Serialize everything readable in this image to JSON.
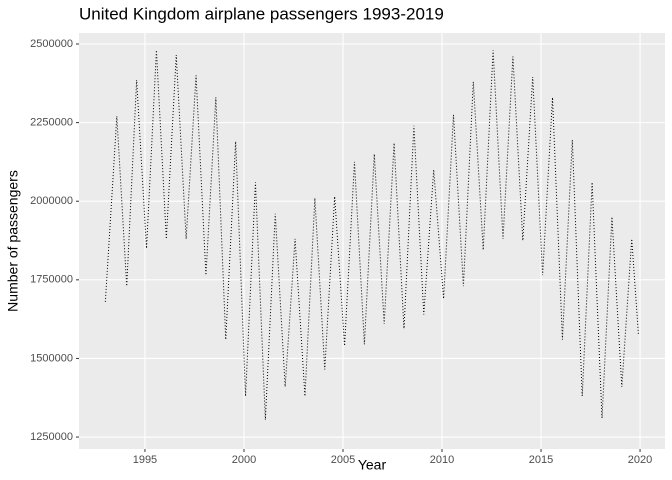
{
  "chart_data": {
    "type": "line",
    "title": "United Kingdom airplane passengers 1993-2019",
    "x_label": "Year",
    "y_label": "Number of passengers",
    "x": [
      1993.0,
      1993.58,
      1994.08,
      1994.58,
      1995.08,
      1995.58,
      1996.08,
      1996.58,
      1997.08,
      1997.58,
      1998.08,
      1998.58,
      1999.08,
      1999.58,
      2000.08,
      2000.58,
      2001.08,
      2001.58,
      2002.08,
      2002.58,
      2003.08,
      2003.58,
      2004.08,
      2004.58,
      2005.08,
      2005.58,
      2006.08,
      2006.58,
      2007.08,
      2007.58,
      2008.08,
      2008.58,
      2009.08,
      2009.58,
      2010.08,
      2010.58,
      2011.08,
      2011.58,
      2012.08,
      2012.58,
      2013.08,
      2013.58,
      2014.08,
      2014.58,
      2015.08,
      2015.58,
      2016.08,
      2016.58,
      2017.08,
      2017.58,
      2018.08,
      2018.58,
      2019.08,
      2019.58,
      2019.92
    ],
    "values": [
      1680000,
      2270000,
      1730000,
      2385000,
      1850000,
      2480000,
      1880000,
      2465000,
      1880000,
      2400000,
      1765000,
      2330000,
      1560000,
      2190000,
      1380000,
      2060000,
      1305000,
      1960000,
      1410000,
      1880000,
      1380000,
      2010000,
      1465000,
      2015000,
      1540000,
      2125000,
      1545000,
      2150000,
      1610000,
      2185000,
      1595000,
      2240000,
      1640000,
      2100000,
      1690000,
      2275000,
      1730000,
      2380000,
      1845000,
      2480000,
      1880000,
      2460000,
      1875000,
      2395000,
      1765000,
      2330000,
      1560000,
      2195000,
      1380000,
      2060000,
      1310000,
      1950000,
      1410000,
      1880000,
      1575000
    ],
    "color": "#000000",
    "xlim": [
      1991.67,
      2021.26
    ],
    "xticks": [
      1995,
      2000,
      2005,
      2010,
      2015,
      2020
    ],
    "ylim": [
      1212000,
      2535000
    ],
    "yticks": [
      1250000,
      1500000,
      1750000,
      2000000,
      2250000,
      2500000
    ],
    "grid": true
  }
}
